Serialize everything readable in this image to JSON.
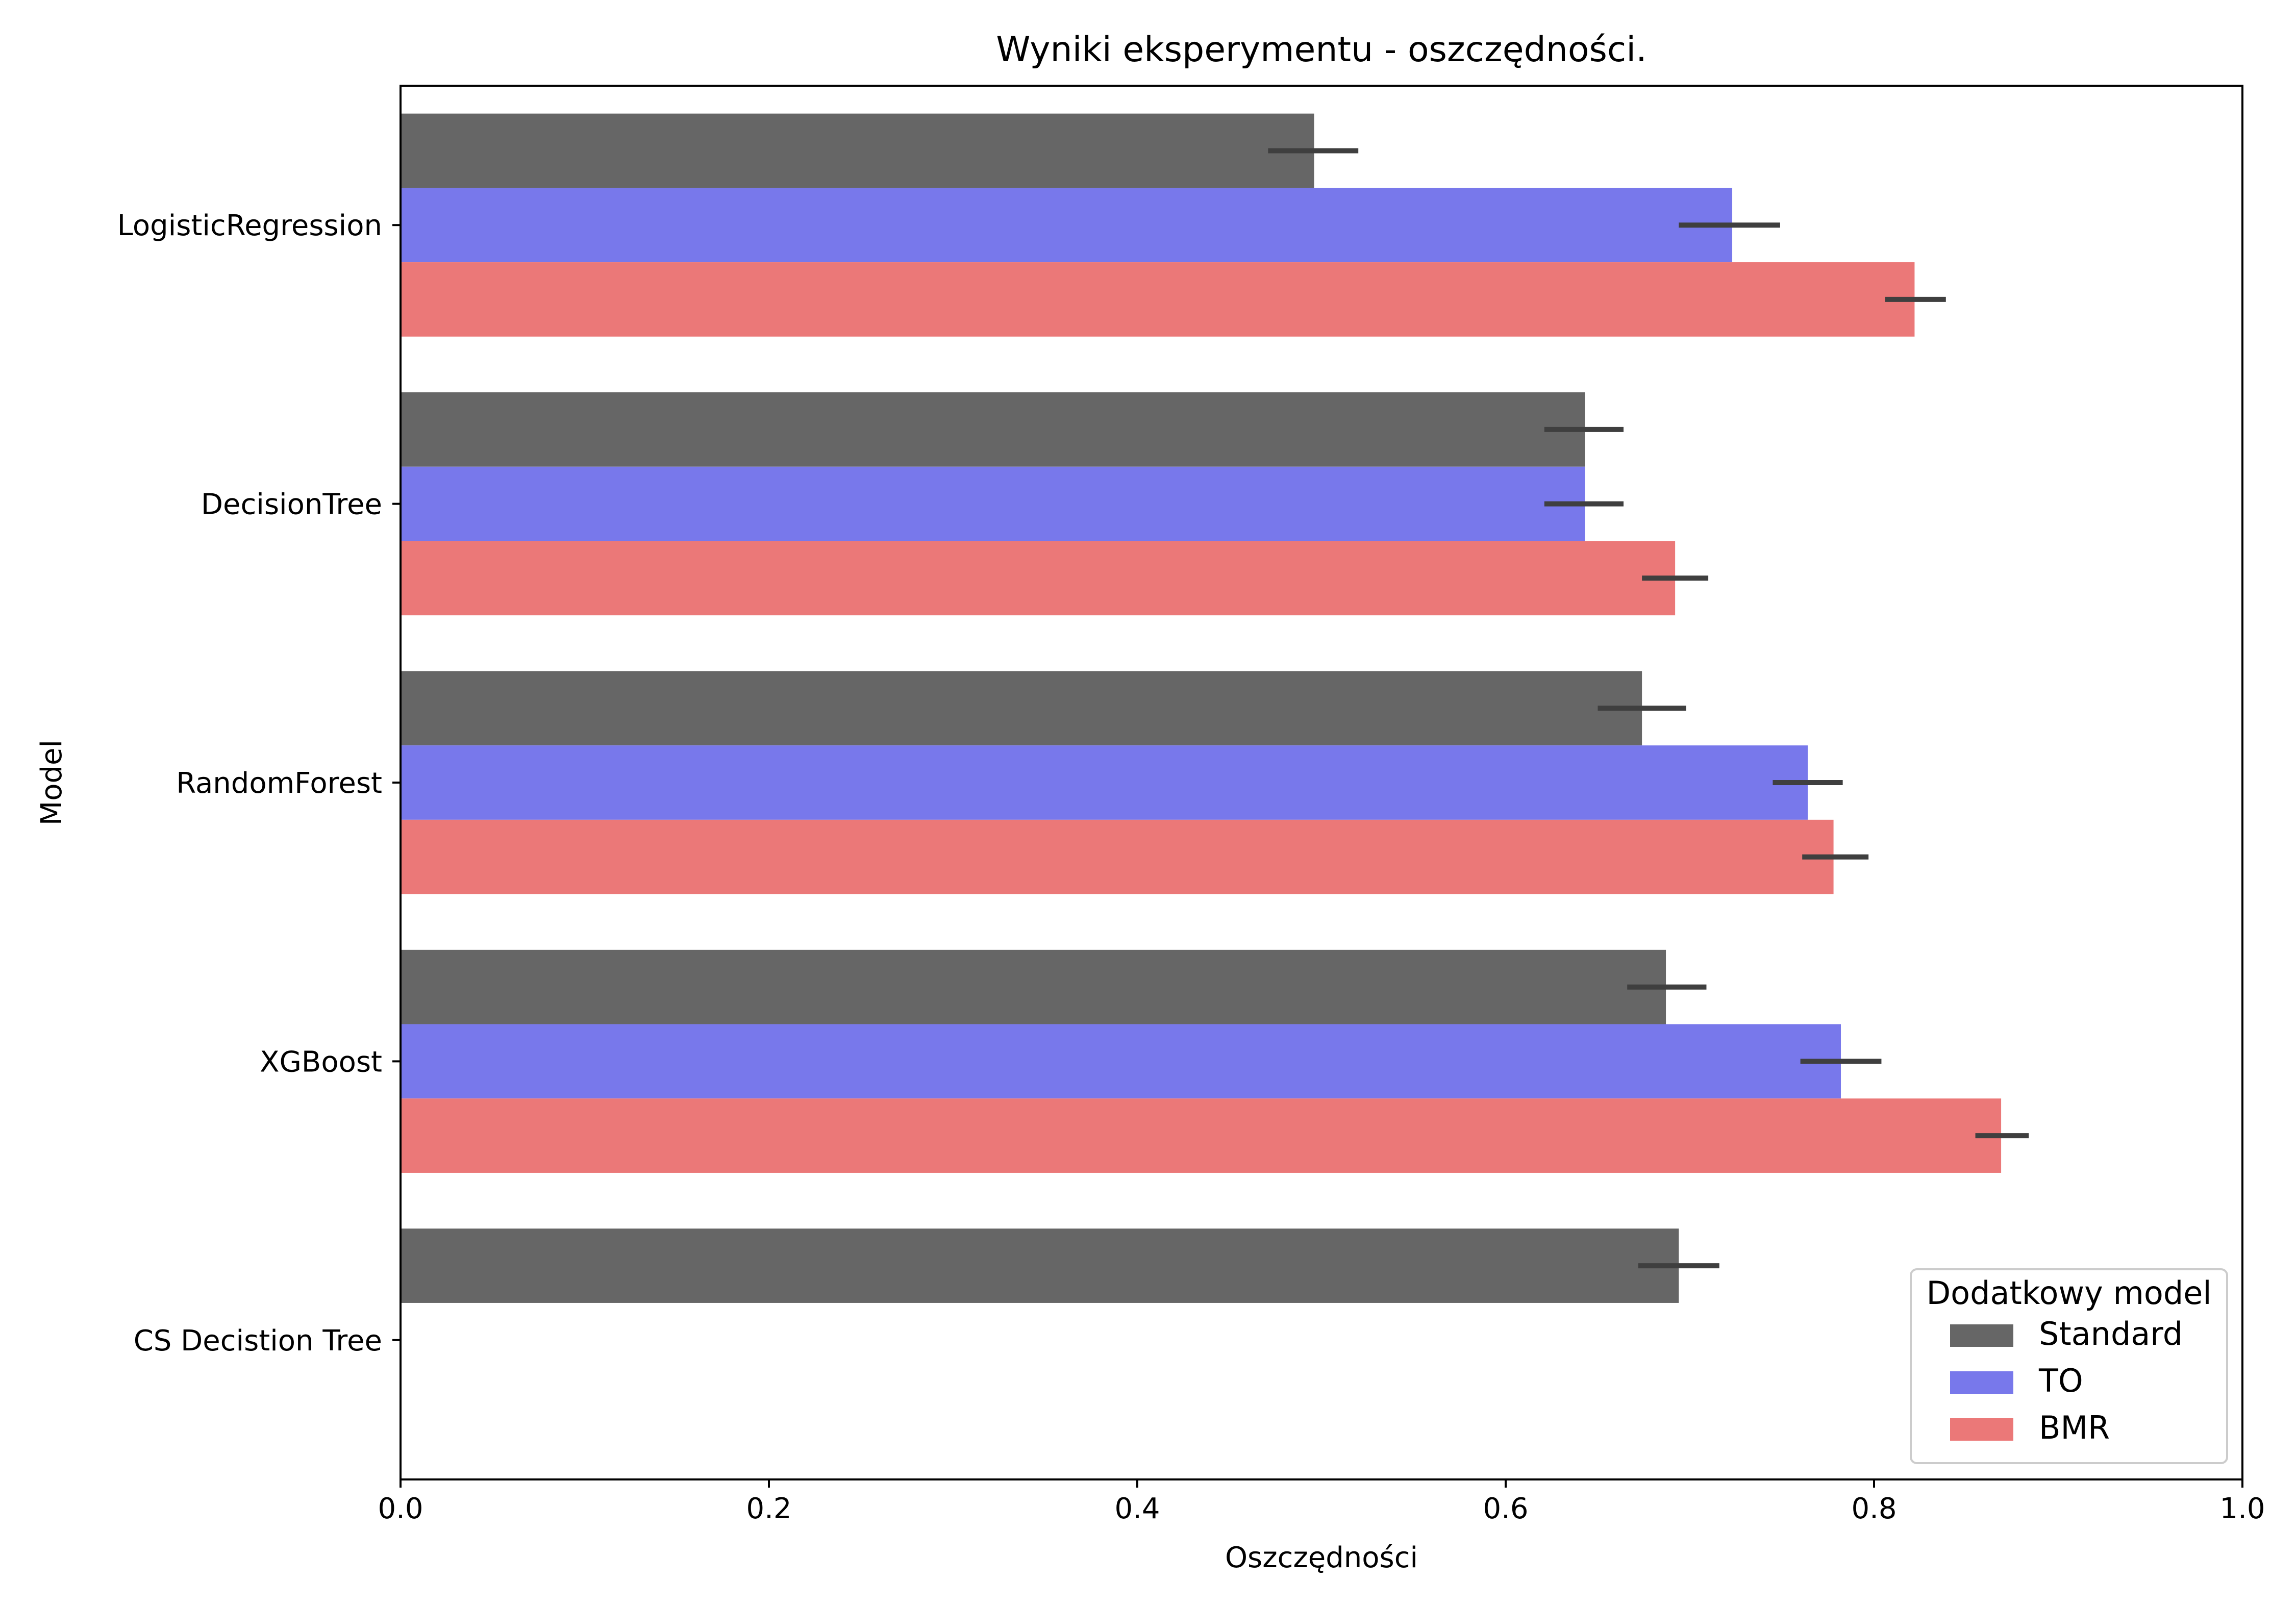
{
  "chart_data": {
    "type": "bar",
    "orientation": "horizontal",
    "title": "Wyniki eksperymentu - oszczędności.",
    "xlabel": "Oszczędności",
    "ylabel": "Model",
    "xlim": [
      0,
      1
    ],
    "xticks": [
      "0.0",
      "0.2",
      "0.4",
      "0.6",
      "0.8",
      "1.0"
    ],
    "grid": false,
    "categories": [
      "LogisticRegression",
      "DecisionTree",
      "RandomForest",
      "XGBoost",
      "CS Decistion Tree"
    ],
    "series": [
      {
        "name": "Standard",
        "color": "#666666",
        "values": [
          0.496,
          0.643,
          0.674,
          0.687,
          0.694
        ],
        "err_low": [
          0.471,
          0.621,
          0.65,
          0.666,
          0.672
        ],
        "err_high": [
          0.52,
          0.664,
          0.698,
          0.709,
          0.716
        ]
      },
      {
        "name": "TO",
        "color": "#7878eb",
        "values": [
          0.723,
          0.643,
          0.764,
          0.782,
          null
        ],
        "err_low": [
          0.694,
          0.621,
          0.745,
          0.76,
          null
        ],
        "err_high": [
          0.749,
          0.664,
          0.783,
          0.804,
          null
        ]
      },
      {
        "name": "BMR",
        "color": "#eb7878",
        "values": [
          0.822,
          0.692,
          0.778,
          0.869,
          null
        ],
        "err_low": [
          0.806,
          0.674,
          0.761,
          0.855,
          null
        ],
        "err_high": [
          0.839,
          0.71,
          0.797,
          0.884,
          null
        ]
      }
    ],
    "error_bar_color": "#3f3f3f",
    "legend": {
      "title": "Dodatkowy model",
      "placement": "bottom-right"
    }
  }
}
